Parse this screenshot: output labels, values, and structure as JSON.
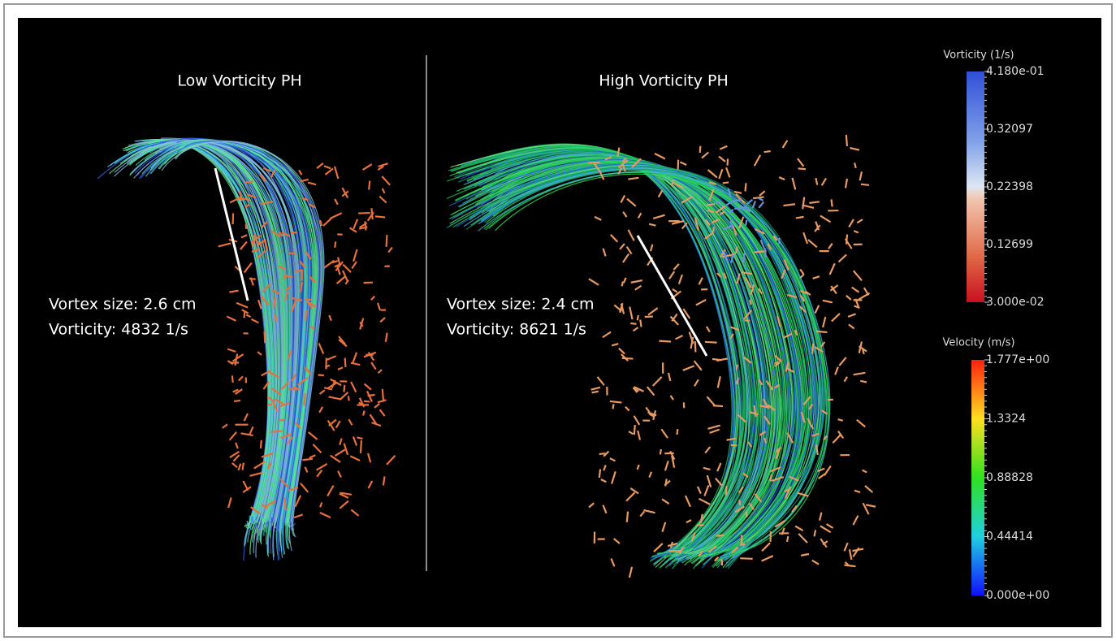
{
  "panels": [
    {
      "title": "Low Vorticity PH",
      "annotations": [
        "Vortex size: 2.6 cm",
        "Vorticity: 4832 1/s"
      ]
    },
    {
      "title": "High Vorticity PH",
      "annotations": [
        "Vortex size: 2.4 cm",
        "Vorticity: 8621 1/s"
      ]
    }
  ],
  "colorbars": [
    {
      "title": "Vorticity (1/s)",
      "ticks": [
        "4.180e-01",
        "0.32097",
        "0.22398",
        "0.12699",
        "3.000e-02"
      ]
    },
    {
      "title": "Velocity (m/s)",
      "ticks": [
        "1.777e+00",
        "1.3324",
        "0.88828",
        "0.44414",
        "0.000e+00"
      ]
    }
  ]
}
